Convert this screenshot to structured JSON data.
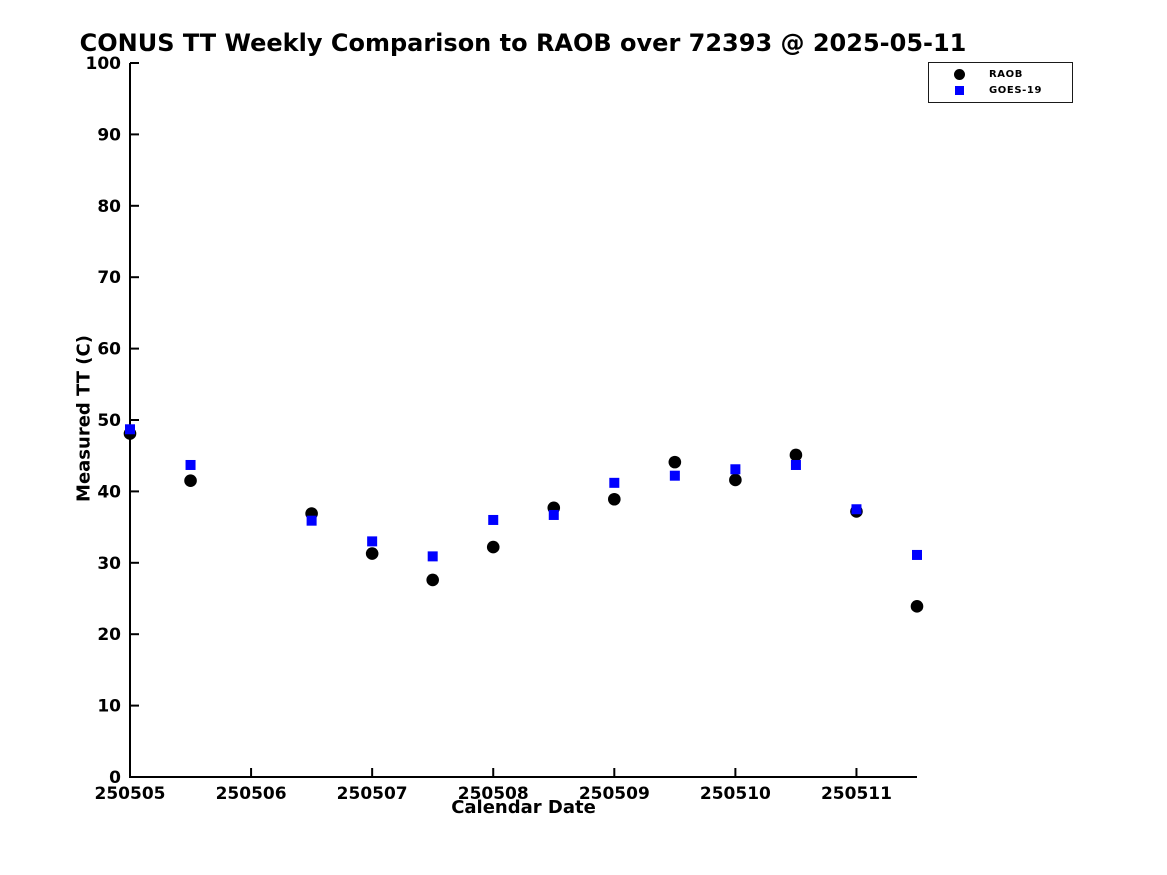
{
  "chart_data": {
    "type": "scatter",
    "title": "CONUS TT Weekly Comparison to RAOB over 72393 @ 2025-05-11",
    "xlabel": "Calendar Date",
    "ylabel": "Measured TT (C)",
    "grid": false,
    "background_color": "#ffffff",
    "axis_color": "#000000",
    "x_axis": {
      "tick_labels": [
        "250505",
        "250506",
        "250507",
        "250508",
        "250509",
        "250510",
        "250511"
      ],
      "tick_positions": [
        0,
        1,
        2,
        3,
        4,
        5,
        6
      ],
      "range": [
        0,
        6.5
      ]
    },
    "y_axis": {
      "ticks": [
        0,
        10,
        20,
        30,
        40,
        50,
        60,
        70,
        80,
        90,
        100
      ],
      "range": [
        0,
        100
      ]
    },
    "x": [
      0,
      0.5,
      1.5,
      2,
      2.5,
      3,
      3.5,
      4,
      4.5,
      5,
      5.5,
      6,
      6.5
    ],
    "series": [
      {
        "name": "RAOB",
        "marker": "circle",
        "color": "#000000",
        "values": [
          48.1,
          41.5,
          36.9,
          31.3,
          27.6,
          32.2,
          37.7,
          38.9,
          44.1,
          41.6,
          45.1,
          37.2,
          23.9
        ]
      },
      {
        "name": "GOES-19",
        "marker": "square",
        "color": "#0000ff",
        "values": [
          48.7,
          43.7,
          35.9,
          33.0,
          30.9,
          36.0,
          36.7,
          41.2,
          42.2,
          43.1,
          43.7,
          37.5,
          31.1
        ]
      }
    ],
    "legend": {
      "position": "top-right",
      "entries": [
        "RAOB",
        "GOES-19"
      ]
    }
  }
}
